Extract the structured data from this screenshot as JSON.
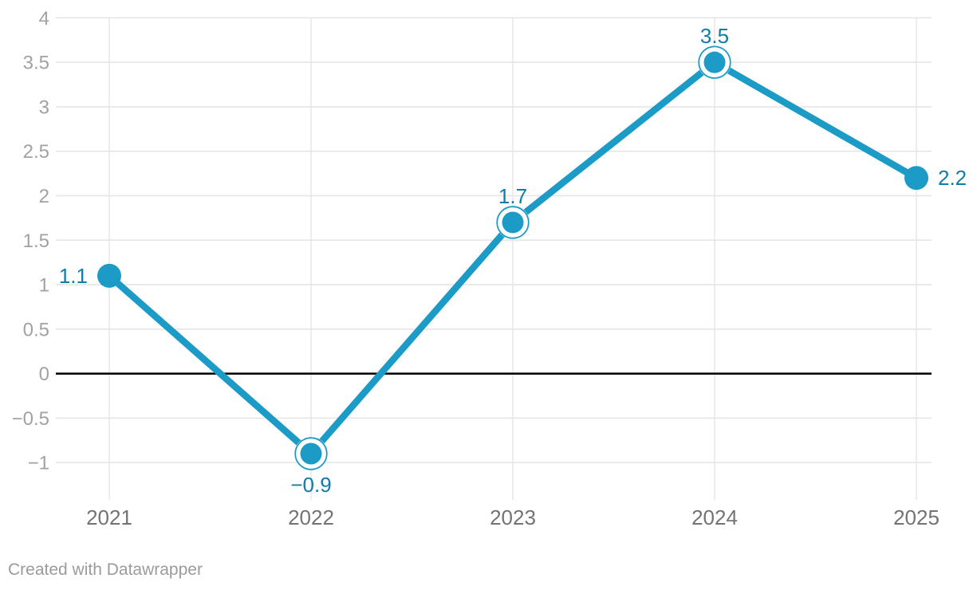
{
  "chart_data": {
    "type": "line",
    "title": "",
    "xlabel": "",
    "ylabel": "",
    "x": [
      2021,
      2022,
      2023,
      2024,
      2025
    ],
    "x_labels": [
      "2021",
      "2022",
      "2023",
      "2024",
      "2025"
    ],
    "series": [
      {
        "name": "value",
        "values": [
          1.1,
          -0.9,
          1.7,
          3.5,
          2.2
        ]
      }
    ],
    "value_labels": [
      "1.1",
      "−0.9",
      "1.7",
      "3.5",
      "2.2"
    ],
    "label_positions": [
      "left",
      "below",
      "above",
      "above",
      "right"
    ],
    "markers": [
      "solid",
      "ring",
      "ring",
      "ring",
      "solid"
    ],
    "y_ticks": [
      4,
      3.5,
      3,
      2.5,
      2,
      1.5,
      1,
      0.5,
      0,
      -0.5,
      -1
    ],
    "y_tick_labels": [
      "4",
      "3.5",
      "3",
      "2.5",
      "2",
      "1.5",
      "1",
      "0.5",
      "0",
      "−0.5",
      "−1"
    ],
    "ylim": [
      -1,
      4
    ],
    "grid": true,
    "zero_line": true,
    "legend": "none",
    "colors": {
      "line": "#1d9bc7",
      "value_label": "#0e7ea9",
      "y_tick_label": "#a2a2a2",
      "x_tick_label": "#737373",
      "grid": "#e4e4e4",
      "grid_vertical": "#e7e7e7",
      "zero_line": "#000000",
      "background": "#ffffff"
    }
  },
  "footer": {
    "credit": "Created with Datawrapper"
  }
}
